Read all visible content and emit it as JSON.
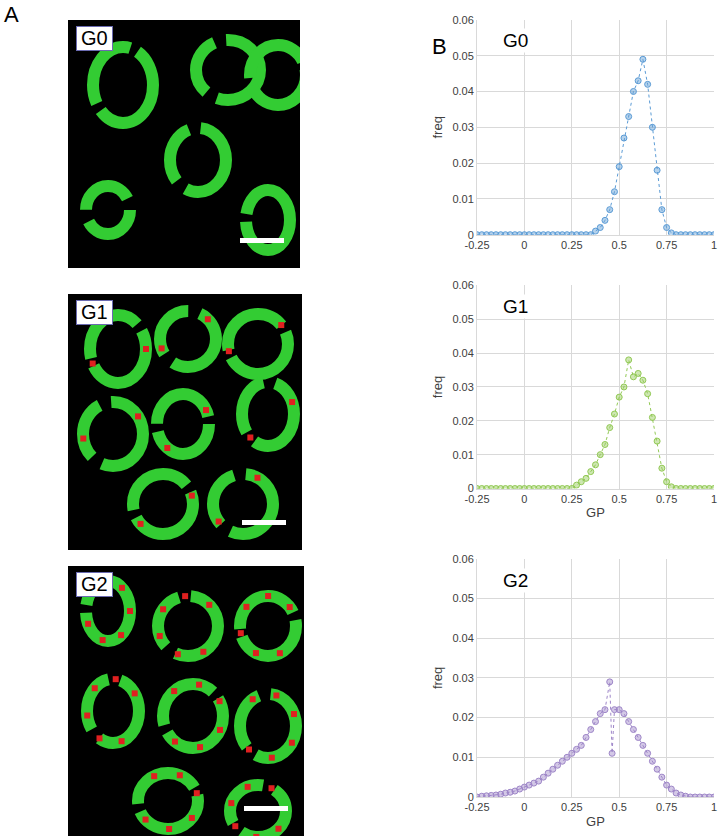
{
  "figure": {
    "panel_labels": [
      "A",
      "B"
    ],
    "images": [
      {
        "label": "G0"
      },
      {
        "label": "G1"
      },
      {
        "label": "G2"
      }
    ]
  },
  "chart_data": [
    {
      "type": "scatter",
      "title": "G0",
      "y_label": "freq",
      "color": "#5b9bd5",
      "marker": "circle",
      "line_style": "dotted",
      "grid": true,
      "xlim": [
        -0.25,
        1
      ],
      "xticks": [
        -0.25,
        0,
        0.25,
        0.5,
        0.75,
        1
      ],
      "ylim": [
        0,
        0.06
      ],
      "yticks": [
        0,
        0.01,
        0.02,
        0.03,
        0.04,
        0.05,
        0.06
      ],
      "x": [
        -0.25,
        -0.225,
        -0.2,
        -0.175,
        -0.15,
        -0.125,
        -0.1,
        -0.075,
        -0.05,
        -0.025,
        0,
        0.025,
        0.05,
        0.075,
        0.1,
        0.125,
        0.15,
        0.175,
        0.2,
        0.225,
        0.25,
        0.275,
        0.3,
        0.325,
        0.35,
        0.375,
        0.4,
        0.425,
        0.45,
        0.475,
        0.5,
        0.525,
        0.55,
        0.575,
        0.6,
        0.625,
        0.65,
        0.675,
        0.7,
        0.725,
        0.75,
        0.775,
        0.8,
        0.825,
        0.85,
        0.875,
        0.9,
        0.925,
        0.95,
        0.975,
        1
      ],
      "values": [
        0,
        0,
        0,
        0,
        0,
        0,
        0,
        0,
        0,
        0,
        0,
        0,
        0,
        0,
        0,
        0,
        0,
        0,
        0,
        0,
        0,
        0,
        0,
        0,
        0,
        0.001,
        0.002,
        0.004,
        0.007,
        0.012,
        0.019,
        0.027,
        0.033,
        0.04,
        0.043,
        0.049,
        0.042,
        0.03,
        0.018,
        0.007,
        0.002,
        0.0005,
        0,
        0,
        0,
        0,
        0,
        0,
        0,
        0,
        0
      ]
    },
    {
      "type": "scatter",
      "title": "G1",
      "x_label": "GP",
      "y_label": "freq",
      "color": "#92c955",
      "marker": "circle",
      "line_style": "dotted",
      "grid": true,
      "xlim": [
        -0.25,
        1
      ],
      "xticks": [
        -0.25,
        0,
        0.25,
        0.5,
        0.75,
        1
      ],
      "ylim": [
        0,
        0.06
      ],
      "yticks": [
        0,
        0.01,
        0.02,
        0.03,
        0.04,
        0.05,
        0.06
      ],
      "x": [
        -0.25,
        -0.225,
        -0.2,
        -0.175,
        -0.15,
        -0.125,
        -0.1,
        -0.075,
        -0.05,
        -0.025,
        0,
        0.025,
        0.05,
        0.075,
        0.1,
        0.125,
        0.15,
        0.175,
        0.2,
        0.225,
        0.25,
        0.275,
        0.3,
        0.325,
        0.35,
        0.375,
        0.4,
        0.425,
        0.45,
        0.475,
        0.5,
        0.525,
        0.55,
        0.575,
        0.6,
        0.625,
        0.65,
        0.675,
        0.7,
        0.725,
        0.75,
        0.775,
        0.8,
        0.825,
        0.85,
        0.875,
        0.9,
        0.925,
        0.95,
        0.975,
        1
      ],
      "values": [
        0,
        0,
        0,
        0,
        0,
        0,
        0,
        0,
        0,
        0,
        0,
        0,
        0,
        0,
        0,
        0,
        0,
        0,
        0,
        0,
        0,
        0.001,
        0.002,
        0.003,
        0.005,
        0.007,
        0.01,
        0.013,
        0.018,
        0.022,
        0.027,
        0.03,
        0.038,
        0.033,
        0.034,
        0.032,
        0.028,
        0.021,
        0.014,
        0.006,
        0.002,
        0.0005,
        0,
        0,
        0,
        0,
        0,
        0,
        0,
        0,
        0
      ]
    },
    {
      "type": "scatter",
      "title": "G2",
      "x_label": "GP",
      "y_label": "freq",
      "color": "#9e86c8",
      "marker": "circle",
      "line_style": "dotted",
      "grid": true,
      "xlim": [
        -0.25,
        1
      ],
      "xticks": [
        -0.25,
        0,
        0.25,
        0.5,
        0.75,
        1
      ],
      "ylim": [
        0,
        0.06
      ],
      "yticks": [
        0,
        0.01,
        0.02,
        0.03,
        0.04,
        0.05,
        0.06
      ],
      "x": [
        -0.25,
        -0.225,
        -0.2,
        -0.175,
        -0.15,
        -0.125,
        -0.1,
        -0.075,
        -0.05,
        -0.025,
        0,
        0.025,
        0.05,
        0.075,
        0.1,
        0.125,
        0.15,
        0.175,
        0.2,
        0.225,
        0.25,
        0.275,
        0.3,
        0.325,
        0.35,
        0.375,
        0.4,
        0.425,
        0.45,
        0.4625,
        0.475,
        0.5,
        0.525,
        0.55,
        0.575,
        0.6,
        0.625,
        0.65,
        0.675,
        0.7,
        0.725,
        0.75,
        0.775,
        0.8,
        0.825,
        0.85,
        0.875,
        0.9,
        0.925,
        0.95,
        0.975,
        1
      ],
      "values": [
        0,
        0.0002,
        0.0003,
        0.0004,
        0.0005,
        0.0007,
        0.001,
        0.0012,
        0.0015,
        0.002,
        0.0025,
        0.003,
        0.0035,
        0.004,
        0.005,
        0.006,
        0.007,
        0.008,
        0.009,
        0.01,
        0.011,
        0.012,
        0.013,
        0.015,
        0.017,
        0.019,
        0.021,
        0.022,
        0.029,
        0.011,
        0.022,
        0.022,
        0.021,
        0.019,
        0.017,
        0.015,
        0.013,
        0.011,
        0.009,
        0.007,
        0.005,
        0.003,
        0.002,
        0.001,
        0.0005,
        0.0002,
        0,
        0,
        0,
        0,
        0,
        0
      ]
    }
  ]
}
